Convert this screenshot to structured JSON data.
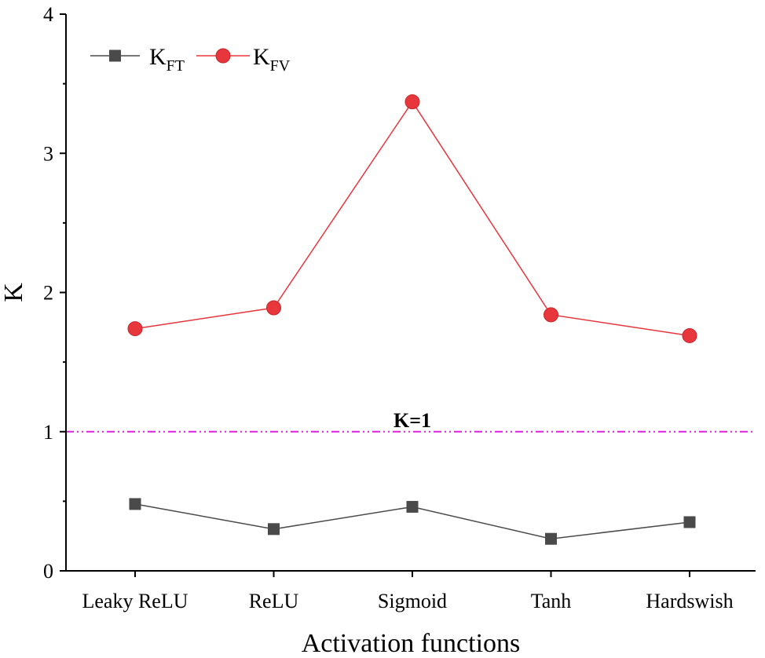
{
  "chart_data": {
    "type": "line",
    "xlabel": "Activation functions",
    "ylabel": "K",
    "ylim": [
      0,
      4
    ],
    "yticks": [
      0,
      1,
      2,
      3,
      4
    ],
    "categories": [
      "Leaky ReLU",
      "ReLU",
      "Sigmoid",
      "Tanh",
      "Hardswish"
    ],
    "series": [
      {
        "name": "K",
        "subscript": "FT",
        "marker": "square",
        "color": "#4a4a4a",
        "values": [
          0.48,
          0.3,
          0.46,
          0.23,
          0.35
        ]
      },
      {
        "name": "K",
        "subscript": "FV",
        "marker": "circle",
        "color": "#e8363d",
        "values": [
          1.74,
          1.89,
          3.37,
          1.84,
          1.69
        ]
      }
    ],
    "reference_line": {
      "value": 1,
      "label": "K=1",
      "color": "#e020e0",
      "style": "dash-dot-dot"
    },
    "legend_position": "top-left",
    "grid": false
  }
}
